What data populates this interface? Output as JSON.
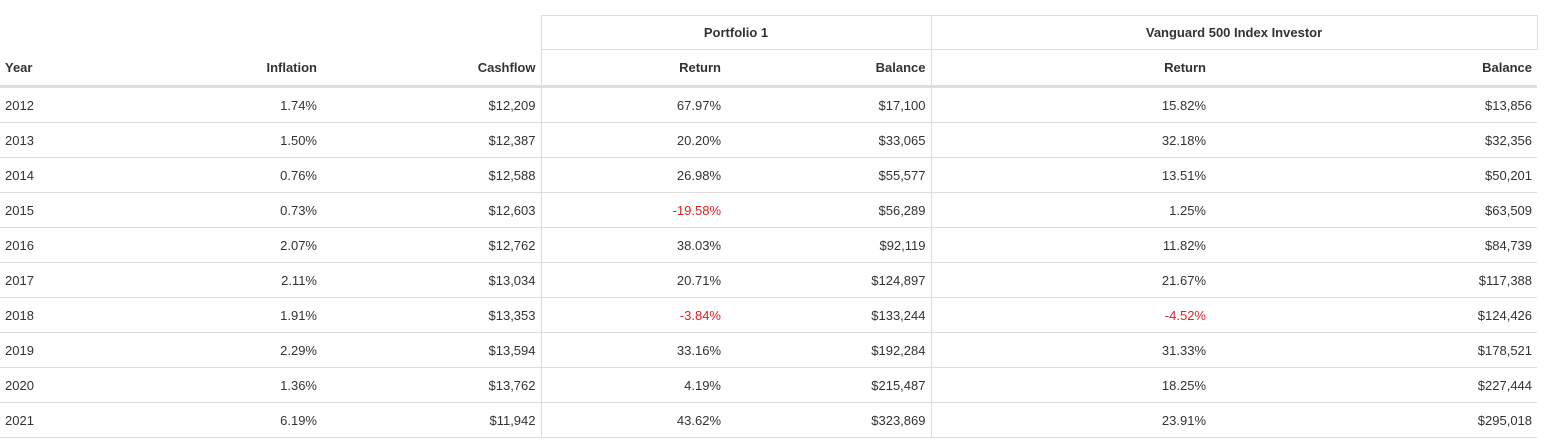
{
  "table": {
    "groups": {
      "portfolio1": "Portfolio 1",
      "vanguard": "Vanguard 500 Index Investor"
    },
    "columns": {
      "year": "Year",
      "inflation": "Inflation",
      "cashflow": "Cashflow",
      "p1_return": "Return",
      "p1_balance": "Balance",
      "v_return": "Return",
      "v_balance": "Balance"
    },
    "rows": [
      {
        "year": "2012",
        "inflation": "1.74%",
        "cashflow": "$12,209",
        "p1_return": "67.97%",
        "p1_balance": "$17,100",
        "v_return": "15.82%",
        "v_balance": "$13,856"
      },
      {
        "year": "2013",
        "inflation": "1.50%",
        "cashflow": "$12,387",
        "p1_return": "20.20%",
        "p1_balance": "$33,065",
        "v_return": "32.18%",
        "v_balance": "$32,356"
      },
      {
        "year": "2014",
        "inflation": "0.76%",
        "cashflow": "$12,588",
        "p1_return": "26.98%",
        "p1_balance": "$55,577",
        "v_return": "13.51%",
        "v_balance": "$50,201"
      },
      {
        "year": "2015",
        "inflation": "0.73%",
        "cashflow": "$12,603",
        "p1_return": "-19.58%",
        "p1_balance": "$56,289",
        "v_return": "1.25%",
        "v_balance": "$63,509"
      },
      {
        "year": "2016",
        "inflation": "2.07%",
        "cashflow": "$12,762",
        "p1_return": "38.03%",
        "p1_balance": "$92,119",
        "v_return": "11.82%",
        "v_balance": "$84,739"
      },
      {
        "year": "2017",
        "inflation": "2.11%",
        "cashflow": "$13,034",
        "p1_return": "20.71%",
        "p1_balance": "$124,897",
        "v_return": "21.67%",
        "v_balance": "$117,388"
      },
      {
        "year": "2018",
        "inflation": "1.91%",
        "cashflow": "$13,353",
        "p1_return": "-3.84%",
        "p1_balance": "$133,244",
        "v_return": "-4.52%",
        "v_balance": "$124,426"
      },
      {
        "year": "2019",
        "inflation": "2.29%",
        "cashflow": "$13,594",
        "p1_return": "33.16%",
        "p1_balance": "$192,284",
        "v_return": "31.33%",
        "v_balance": "$178,521"
      },
      {
        "year": "2020",
        "inflation": "1.36%",
        "cashflow": "$13,762",
        "p1_return": "4.19%",
        "p1_balance": "$215,487",
        "v_return": "18.25%",
        "v_balance": "$227,444"
      },
      {
        "year": "2021",
        "inflation": "6.19%",
        "cashflow": "$11,942",
        "p1_return": "43.62%",
        "p1_balance": "$323,869",
        "v_return": "23.91%",
        "v_balance": "$295,018"
      }
    ]
  },
  "colors": {
    "text": "#333333",
    "negative": "#e02020",
    "border": "#dddddd"
  }
}
